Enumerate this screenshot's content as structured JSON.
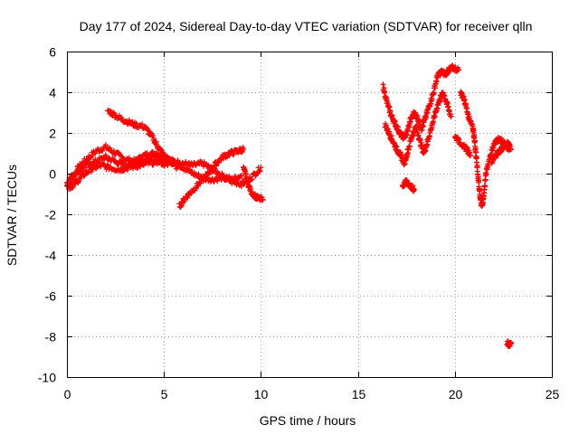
{
  "chart_data": {
    "type": "scatter",
    "title": "Day 177 of 2024, Sidereal Day-to-day VTEC variation (SDTVAR) for receiver qlln",
    "xlabel": "GPS time / hours",
    "ylabel": "SDTVAR / TECUs",
    "xlim": [
      0,
      25
    ],
    "ylim": [
      -10,
      6
    ],
    "xticks": [
      0,
      5,
      10,
      15,
      20,
      25
    ],
    "yticks": [
      -10,
      -8,
      -6,
      -4,
      -2,
      0,
      2,
      4,
      6
    ],
    "grid": true,
    "marker": "+",
    "color": "#ff0000",
    "series": [
      {
        "name": "SDTVAR",
        "segments": [
          [
            [
              0.0,
              -0.6
            ],
            [
              0.3,
              -0.2
            ],
            [
              0.6,
              0.3
            ],
            [
              1.0,
              0.7
            ],
            [
              1.5,
              1.1
            ],
            [
              2.0,
              1.3
            ],
            [
              2.5,
              1.0
            ],
            [
              3.0,
              0.7
            ],
            [
              3.5,
              0.6
            ],
            [
              4.0,
              0.9
            ],
            [
              4.5,
              1.0
            ],
            [
              5.0,
              0.8
            ],
            [
              5.5,
              0.6
            ],
            [
              6.0,
              0.5
            ],
            [
              6.5,
              0.4
            ],
            [
              7.0,
              0.5
            ],
            [
              7.5,
              0.2
            ],
            [
              8.0,
              -0.1
            ],
            [
              8.5,
              -0.3
            ],
            [
              9.0,
              -0.1
            ]
          ],
          [
            [
              0.0,
              -0.4
            ],
            [
              0.5,
              0.1
            ],
            [
              1.0,
              0.4
            ],
            [
              1.5,
              0.6
            ],
            [
              2.0,
              0.8
            ],
            [
              2.5,
              0.6
            ],
            [
              3.0,
              0.4
            ],
            [
              3.5,
              0.5
            ],
            [
              4.0,
              0.7
            ],
            [
              4.5,
              0.9
            ],
            [
              5.0,
              0.8
            ],
            [
              5.5,
              0.6
            ],
            [
              6.0,
              0.3
            ],
            [
              6.5,
              0.0
            ],
            [
              7.0,
              -0.2
            ],
            [
              7.5,
              -0.3
            ],
            [
              8.0,
              -0.2
            ],
            [
              8.5,
              -0.4
            ],
            [
              9.0,
              -0.5
            ],
            [
              9.5,
              -0.2
            ],
            [
              10.0,
              0.3
            ]
          ],
          [
            [
              0.1,
              -0.7
            ],
            [
              0.4,
              -0.5
            ],
            [
              0.8,
              -0.1
            ],
            [
              1.2,
              0.2
            ],
            [
              1.7,
              0.4
            ],
            [
              2.2,
              0.3
            ],
            [
              2.7,
              0.2
            ],
            [
              3.2,
              0.3
            ],
            [
              3.7,
              0.4
            ],
            [
              4.2,
              0.5
            ],
            [
              4.7,
              0.6
            ],
            [
              5.2,
              0.4
            ]
          ],
          [
            [
              2.1,
              3.1
            ],
            [
              2.6,
              2.8
            ],
            [
              3.0,
              2.6
            ],
            [
              3.5,
              2.4
            ],
            [
              4.0,
              2.3
            ],
            [
              4.4,
              1.8
            ],
            [
              4.7,
              1.3
            ],
            [
              5.0,
              0.9
            ],
            [
              5.3,
              0.6
            ],
            [
              5.7,
              0.3
            ]
          ],
          [
            [
              5.8,
              -1.6
            ],
            [
              6.1,
              -1.2
            ],
            [
              6.4,
              -0.9
            ],
            [
              6.8,
              -0.5
            ],
            [
              7.2,
              -0.1
            ],
            [
              7.6,
              0.4
            ],
            [
              8.0,
              0.8
            ],
            [
              8.4,
              1.0
            ],
            [
              8.8,
              1.1
            ],
            [
              9.1,
              1.2
            ]
          ],
          [
            [
              9.1,
              0.3
            ],
            [
              9.3,
              -0.4
            ],
            [
              9.5,
              -0.9
            ],
            [
              9.8,
              -1.2
            ],
            [
              10.1,
              -1.3
            ]
          ],
          [
            [
              16.3,
              4.3
            ],
            [
              16.5,
              3.5
            ],
            [
              16.7,
              2.9
            ],
            [
              16.9,
              2.5
            ],
            [
              17.1,
              2.1
            ],
            [
              17.3,
              1.8
            ],
            [
              17.5,
              1.9
            ],
            [
              17.7,
              2.6
            ],
            [
              17.9,
              3.0
            ],
            [
              18.1,
              2.7
            ],
            [
              18.3,
              2.2
            ],
            [
              18.5,
              2.8
            ],
            [
              18.7,
              3.4
            ],
            [
              18.9,
              4.0
            ],
            [
              19.1,
              4.8
            ],
            [
              19.3,
              5.0
            ],
            [
              19.5,
              4.9
            ],
            [
              19.7,
              5.1
            ],
            [
              19.9,
              5.2
            ],
            [
              20.2,
              5.1
            ]
          ],
          [
            [
              16.4,
              2.4
            ],
            [
              16.6,
              2.0
            ],
            [
              16.8,
              1.6
            ],
            [
              17.0,
              1.2
            ],
            [
              17.2,
              0.9
            ],
            [
              17.4,
              0.5
            ],
            [
              17.6,
              1.2
            ],
            [
              17.8,
              1.9
            ],
            [
              18.0,
              2.3
            ],
            [
              18.2,
              1.6
            ],
            [
              18.4,
              1.0
            ],
            [
              18.6,
              1.6
            ],
            [
              18.8,
              2.3
            ],
            [
              19.0,
              3.0
            ],
            [
              19.2,
              3.6
            ],
            [
              19.4,
              4.0
            ],
            [
              19.6,
              3.4
            ],
            [
              19.8,
              2.8
            ]
          ],
          [
            [
              17.3,
              -0.6
            ],
            [
              17.5,
              -0.4
            ],
            [
              17.7,
              -0.6
            ],
            [
              17.9,
              -0.8
            ]
          ],
          [
            [
              20.3,
              4.0
            ],
            [
              20.5,
              3.6
            ],
            [
              20.7,
              2.8
            ],
            [
              20.9,
              2.4
            ],
            [
              21.0,
              1.8
            ],
            [
              21.1,
              0.8
            ],
            [
              21.2,
              -0.2
            ],
            [
              21.3,
              -1.2
            ],
            [
              21.4,
              -1.6
            ],
            [
              21.5,
              -1.0
            ],
            [
              21.6,
              0.0
            ],
            [
              21.8,
              0.8
            ],
            [
              22.0,
              1.4
            ],
            [
              22.2,
              1.7
            ],
            [
              22.4,
              1.6
            ],
            [
              22.6,
              1.4
            ],
            [
              22.8,
              1.2
            ]
          ],
          [
            [
              20.0,
              1.8
            ],
            [
              20.3,
              1.5
            ],
            [
              20.6,
              1.2
            ],
            [
              20.8,
              0.9
            ]
          ],
          [
            [
              21.9,
              0.6
            ],
            [
              22.1,
              0.9
            ],
            [
              22.3,
              1.1
            ],
            [
              22.5,
              1.3
            ],
            [
              22.7,
              1.5
            ],
            [
              22.9,
              1.2
            ]
          ],
          [
            [
              22.7,
              -8.3
            ],
            [
              22.8,
              -8.4
            ],
            [
              22.9,
              -8.3
            ]
          ]
        ]
      }
    ]
  }
}
